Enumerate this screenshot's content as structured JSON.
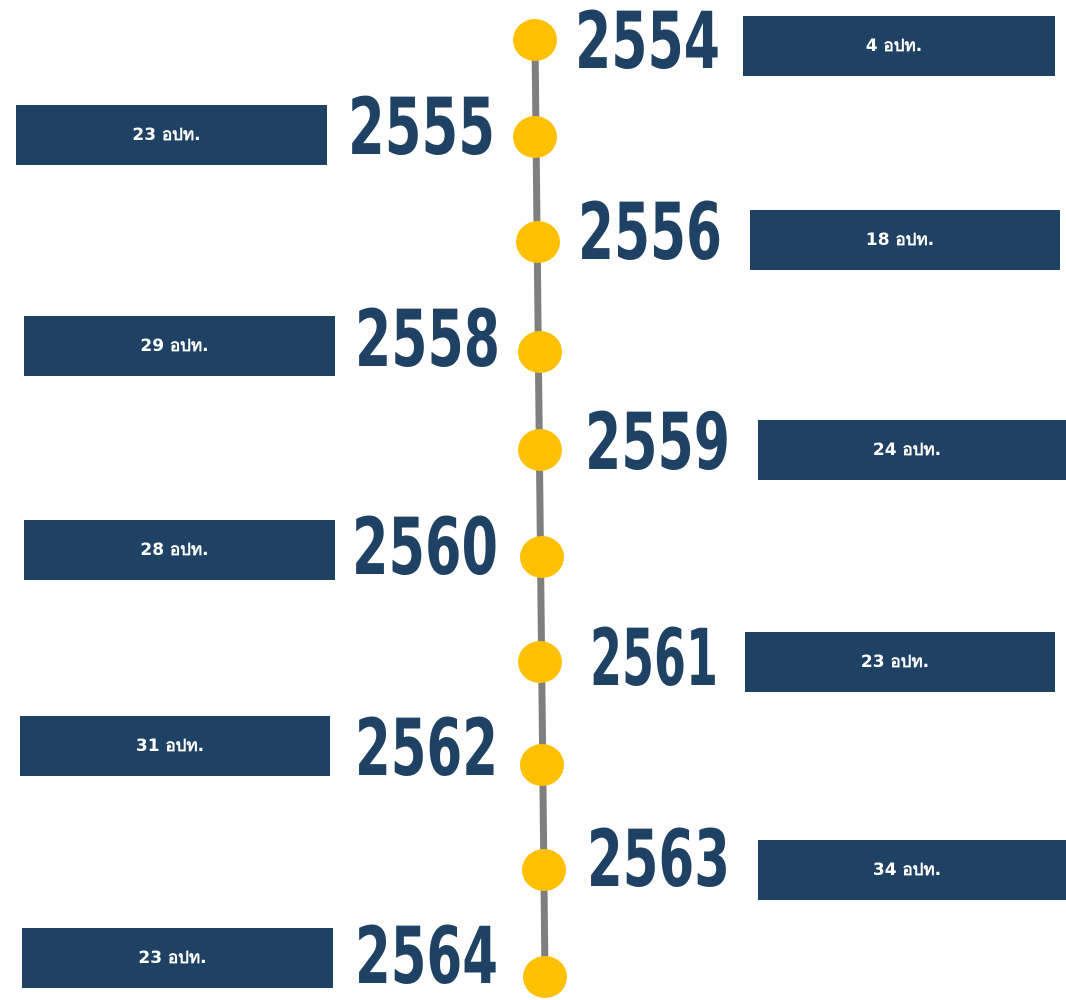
{
  "timeline": {
    "items": [
      {
        "year": "2554",
        "label": "4 อปท."
      },
      {
        "year": "2555",
        "label": "23 อปท."
      },
      {
        "year": "2556",
        "label": "18 อปท."
      },
      {
        "year": "2558",
        "label": "29 อปท."
      },
      {
        "year": "2559",
        "label": "24 อปท."
      },
      {
        "year": "2560",
        "label": "28 อปท."
      },
      {
        "year": "2561",
        "label": "23 อปท."
      },
      {
        "year": "2562",
        "label": "31 อปท."
      },
      {
        "year": "2563",
        "label": "34 อปท."
      },
      {
        "year": "2564",
        "label": "23 อปท."
      }
    ]
  }
}
